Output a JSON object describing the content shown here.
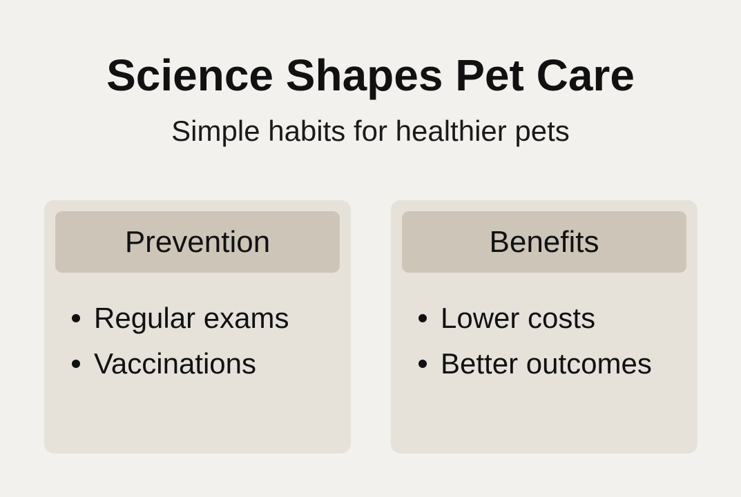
{
  "header": {
    "title": "Science Shapes Pet Care",
    "subtitle": "Simple habits for healthier pets"
  },
  "cards": [
    {
      "title": "Prevention",
      "items": [
        "Regular exams",
        "Vaccinations"
      ]
    },
    {
      "title": "Benefits",
      "items": [
        "Lower costs",
        "Better outcomes"
      ]
    }
  ]
}
